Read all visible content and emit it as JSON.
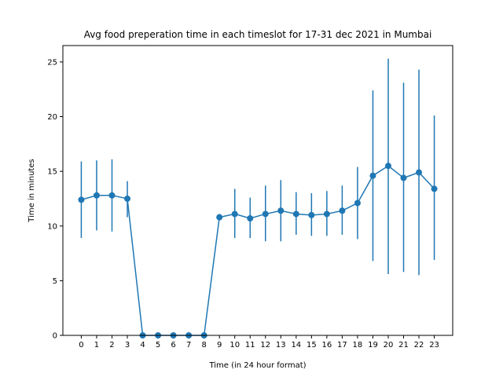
{
  "chart_data": {
    "type": "line",
    "title": "Avg food preperation time in each timeslot for 17-31 dec 2021 in Mumbai",
    "xlabel": "Time (in 24 hour format)",
    "ylabel": "Time in minutes",
    "x": [
      0,
      1,
      2,
      3,
      4,
      5,
      6,
      7,
      8,
      9,
      10,
      11,
      12,
      13,
      14,
      15,
      16,
      17,
      18,
      19,
      20,
      21,
      22,
      23
    ],
    "xticks": [
      "0",
      "1",
      "2",
      "3",
      "4",
      "5",
      "6",
      "7",
      "8",
      "9",
      "10",
      "11",
      "12",
      "13",
      "14",
      "15",
      "16",
      "17",
      "18",
      "19",
      "20",
      "21",
      "22",
      "23"
    ],
    "ylim": [
      0,
      26.5
    ],
    "yticks": [
      0,
      5,
      10,
      15,
      20,
      25
    ],
    "grid": false,
    "color": "#1f77b4",
    "series": [
      {
        "values": [
          12.4,
          12.8,
          12.8,
          12.5,
          0,
          0,
          0,
          0,
          0,
          10.8,
          11.1,
          10.7,
          11.1,
          11.4,
          11.1,
          11.0,
          11.1,
          11.4,
          12.1,
          14.6,
          15.5,
          14.4,
          14.9,
          13.4
        ],
        "error_low": [
          8.9,
          9.6,
          9.5,
          10.8,
          0,
          0,
          0,
          0,
          0,
          10.6,
          8.9,
          8.9,
          8.6,
          8.6,
          9.2,
          9.1,
          9.1,
          9.2,
          8.8,
          6.8,
          5.6,
          5.8,
          5.5,
          6.9
        ],
        "error_high": [
          15.9,
          16.0,
          16.1,
          14.1,
          0,
          0,
          0,
          0,
          0,
          11.1,
          13.4,
          12.6,
          13.7,
          14.2,
          13.1,
          13.0,
          13.2,
          13.7,
          15.4,
          22.4,
          25.3,
          23.1,
          24.3,
          20.1
        ]
      }
    ]
  }
}
